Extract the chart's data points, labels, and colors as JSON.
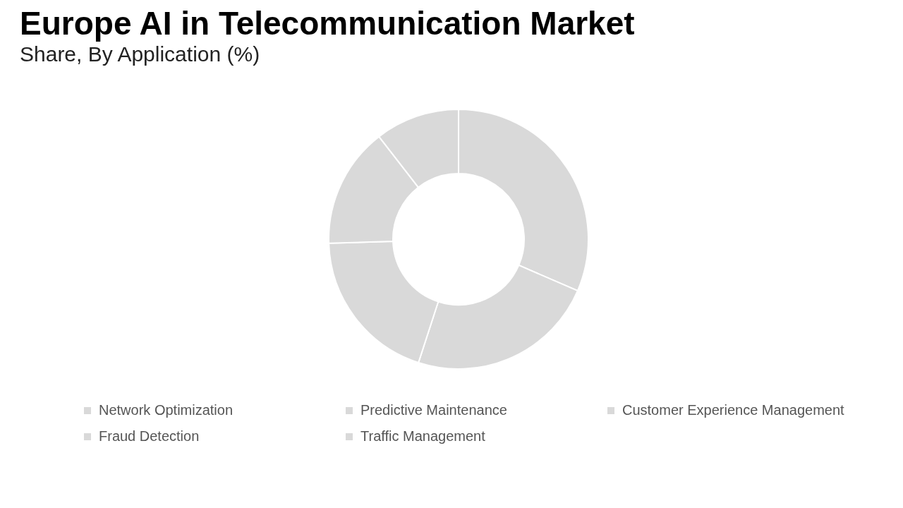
{
  "chart_data": {
    "type": "donut",
    "title": "Europe AI in Telecommunication Market",
    "subtitle": "Share, By Application (%)",
    "categories": [
      "Network Optimization",
      "Predictive Maintenance",
      "Customer Experience Management",
      "Fraud Detection",
      "Traffic Management"
    ],
    "values": [
      31.5,
      23.5,
      19.5,
      15,
      10.5
    ],
    "colors": [
      "#d9d9d9",
      "#d9d9d9",
      "#d9d9d9",
      "#d9d9d9",
      "#d9d9d9"
    ],
    "legend": "bottom"
  }
}
